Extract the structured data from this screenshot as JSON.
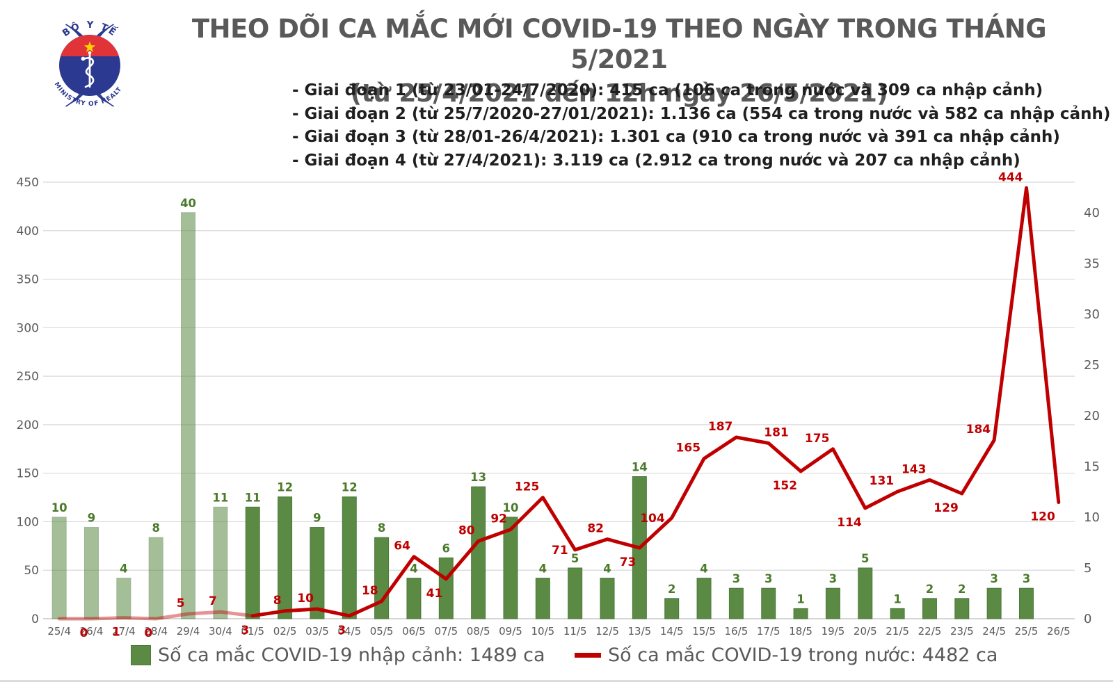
{
  "header": {
    "logo": {
      "top_text": "BỘ Y TẾ",
      "bottom_text": "MINISTRY OF HEALTH"
    },
    "title_line1": "THEO DÕI CA MẮC MỚI COVID-19 THEO NGÀY TRONG THÁNG 5/2021",
    "title_line2": "(từ 25/4/2021 đến 12h ngày 26/5/2021)",
    "phases": [
      "- Giai đoạn 1 (từ 23/01-24/7/2020): 415 ca (106 ca trong nước và 309 ca nhập cảnh)",
      "- Giai đoạn 2 (từ 25/7/2020-27/01/2021): 1.136 ca (554 ca trong nước và 582 ca nhập cảnh)",
      "- Giai đoạn 3 (từ 28/01-26/4/2021): 1.301 ca (910 ca trong nước và 391 ca nhập cảnh)",
      "- Giai đoạn 4 (từ 27/4/2021): 3.119 ca (2.912 ca trong nước và 207 ca nhập cảnh)"
    ]
  },
  "legend": [
    {
      "type": "bar",
      "label": "Số ca mắc COVID-19 nhập cảnh: 1489 ca"
    },
    {
      "type": "line",
      "label": "Số ca mắc COVID-19 trong nước: 4482 ca"
    }
  ],
  "colors": {
    "bar": "#5a8a44",
    "bar_border": "#4d7a3c",
    "bar_label": "#4b7a2b",
    "line": "#c00000",
    "line_label": "#c00000",
    "axis_text": "#595959",
    "grid": "#d9d9d9",
    "axis_line": "#bdbdbd",
    "title": "#595959",
    "logo_blue": "#2b3990",
    "logo_red": "#e03438",
    "star_yellow": "#ffd400"
  },
  "chart_data": {
    "type": "combo",
    "categories": [
      "25/4",
      "26/4",
      "27/4",
      "28/4",
      "29/4",
      "30/4",
      "01/5",
      "02/5",
      "03/5",
      "04/5",
      "05/5",
      "06/5",
      "07/5",
      "08/5",
      "09/5",
      "10/5",
      "11/5",
      "12/5",
      "13/5",
      "14/5",
      "15/5",
      "16/5",
      "17/5",
      "18/5",
      "19/5",
      "20/5",
      "21/5",
      "22/5",
      "23/5",
      "24/5",
      "25/5",
      "26/5"
    ],
    "series": [
      {
        "name": "Số ca mắc COVID-19 nhập cảnh",
        "type": "bar",
        "axis": "right",
        "values": [
          10,
          9,
          4,
          8,
          40,
          11,
          11,
          12,
          9,
          12,
          8,
          4,
          6,
          13,
          10,
          4,
          5,
          4,
          14,
          2,
          4,
          3,
          3,
          1,
          3,
          5,
          1,
          2,
          2,
          3,
          3,
          null
        ]
      },
      {
        "name": "Số ca mắc COVID-19 trong nước",
        "type": "line",
        "axis": "left",
        "values": [
          0,
          0,
          1,
          0,
          5,
          7,
          3,
          8,
          10,
          3,
          18,
          64,
          41,
          80,
          92,
          125,
          71,
          82,
          73,
          104,
          165,
          187,
          181,
          152,
          175,
          114,
          131,
          143,
          129,
          184,
          444,
          120
        ],
        "labels": [
          null,
          "0",
          "1",
          "0",
          "5",
          "7",
          "3",
          "8",
          "10",
          "3",
          "18",
          "64",
          "41",
          "80",
          "92",
          "125",
          "71",
          "82",
          "73",
          "104",
          "165",
          "187",
          "181",
          "152",
          "175",
          "114",
          "131",
          "143",
          "129",
          "184",
          "444",
          "120"
        ],
        "label_pos": [
          "n",
          "b",
          "b",
          "b",
          "a",
          "a",
          "b",
          "a",
          "a",
          "b",
          "a",
          "a",
          "b",
          "a",
          "a",
          "a",
          "l",
          "a",
          "b",
          "l",
          "a",
          "a",
          "a",
          "b",
          "a",
          "b",
          "a",
          "a",
          "b",
          "a",
          "a",
          "b"
        ]
      }
    ],
    "left_axis": {
      "min": 0,
      "max": 450,
      "step": 50
    },
    "right_axis": {
      "min": 0,
      "max": 43,
      "step": 5,
      "max_label": 40
    },
    "faded_categories_count": 6,
    "grid": true,
    "legend_position": "bottom"
  }
}
